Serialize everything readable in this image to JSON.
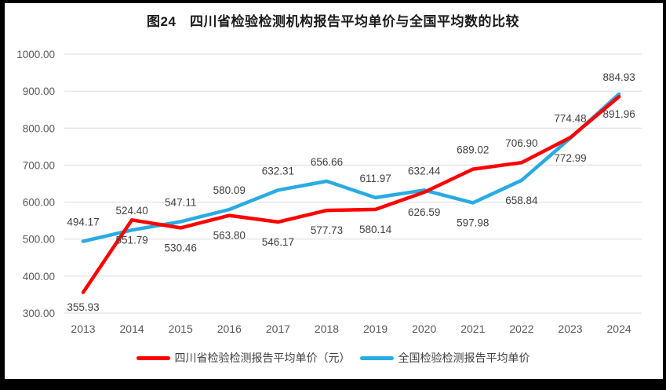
{
  "chart_data": {
    "type": "line",
    "title": "图24　四川省检验检测机构报告平均单价与全国平均数的比较",
    "categories": [
      "2013",
      "2014",
      "2015",
      "2016",
      "2017",
      "2018",
      "2019",
      "2020",
      "2021",
      "2022",
      "2023",
      "2024"
    ],
    "series": [
      {
        "name": "四川省检验检测报告平均单价（元）",
        "color": "#FF0000",
        "values": [
          355.93,
          551.79,
          530.46,
          563.8,
          546.17,
          577.73,
          580.14,
          626.59,
          689.02,
          706.9,
          774.48,
          884.93
        ],
        "label_sides": [
          "below",
          "below",
          "below",
          "below",
          "below",
          "below",
          "below",
          "below",
          "above",
          "above",
          "above",
          "above"
        ]
      },
      {
        "name": "全国检验检测报告平均单价",
        "color": "#29ABE2",
        "values": [
          494.17,
          524.4,
          547.11,
          580.09,
          632.31,
          656.66,
          611.97,
          632.44,
          597.98,
          658.84,
          772.99,
          891.96
        ],
        "label_sides": [
          "above",
          "above",
          "above",
          "above",
          "above",
          "above",
          "above",
          "above",
          "below",
          "below",
          "below",
          "below"
        ]
      }
    ],
    "yticks": [
      "300.00",
      "400.00",
      "500.00",
      "600.00",
      "700.00",
      "800.00",
      "900.00",
      "1000.00"
    ],
    "ylim": [
      300,
      1000
    ],
    "ytick_step": 100,
    "grid": true,
    "legend_position": "bottom",
    "colors": {
      "data_label": "#404040",
      "axis_label": "#595959",
      "gridline": "#DCDCDC",
      "frame": "#000000",
      "background": "#FFFFFF"
    }
  }
}
